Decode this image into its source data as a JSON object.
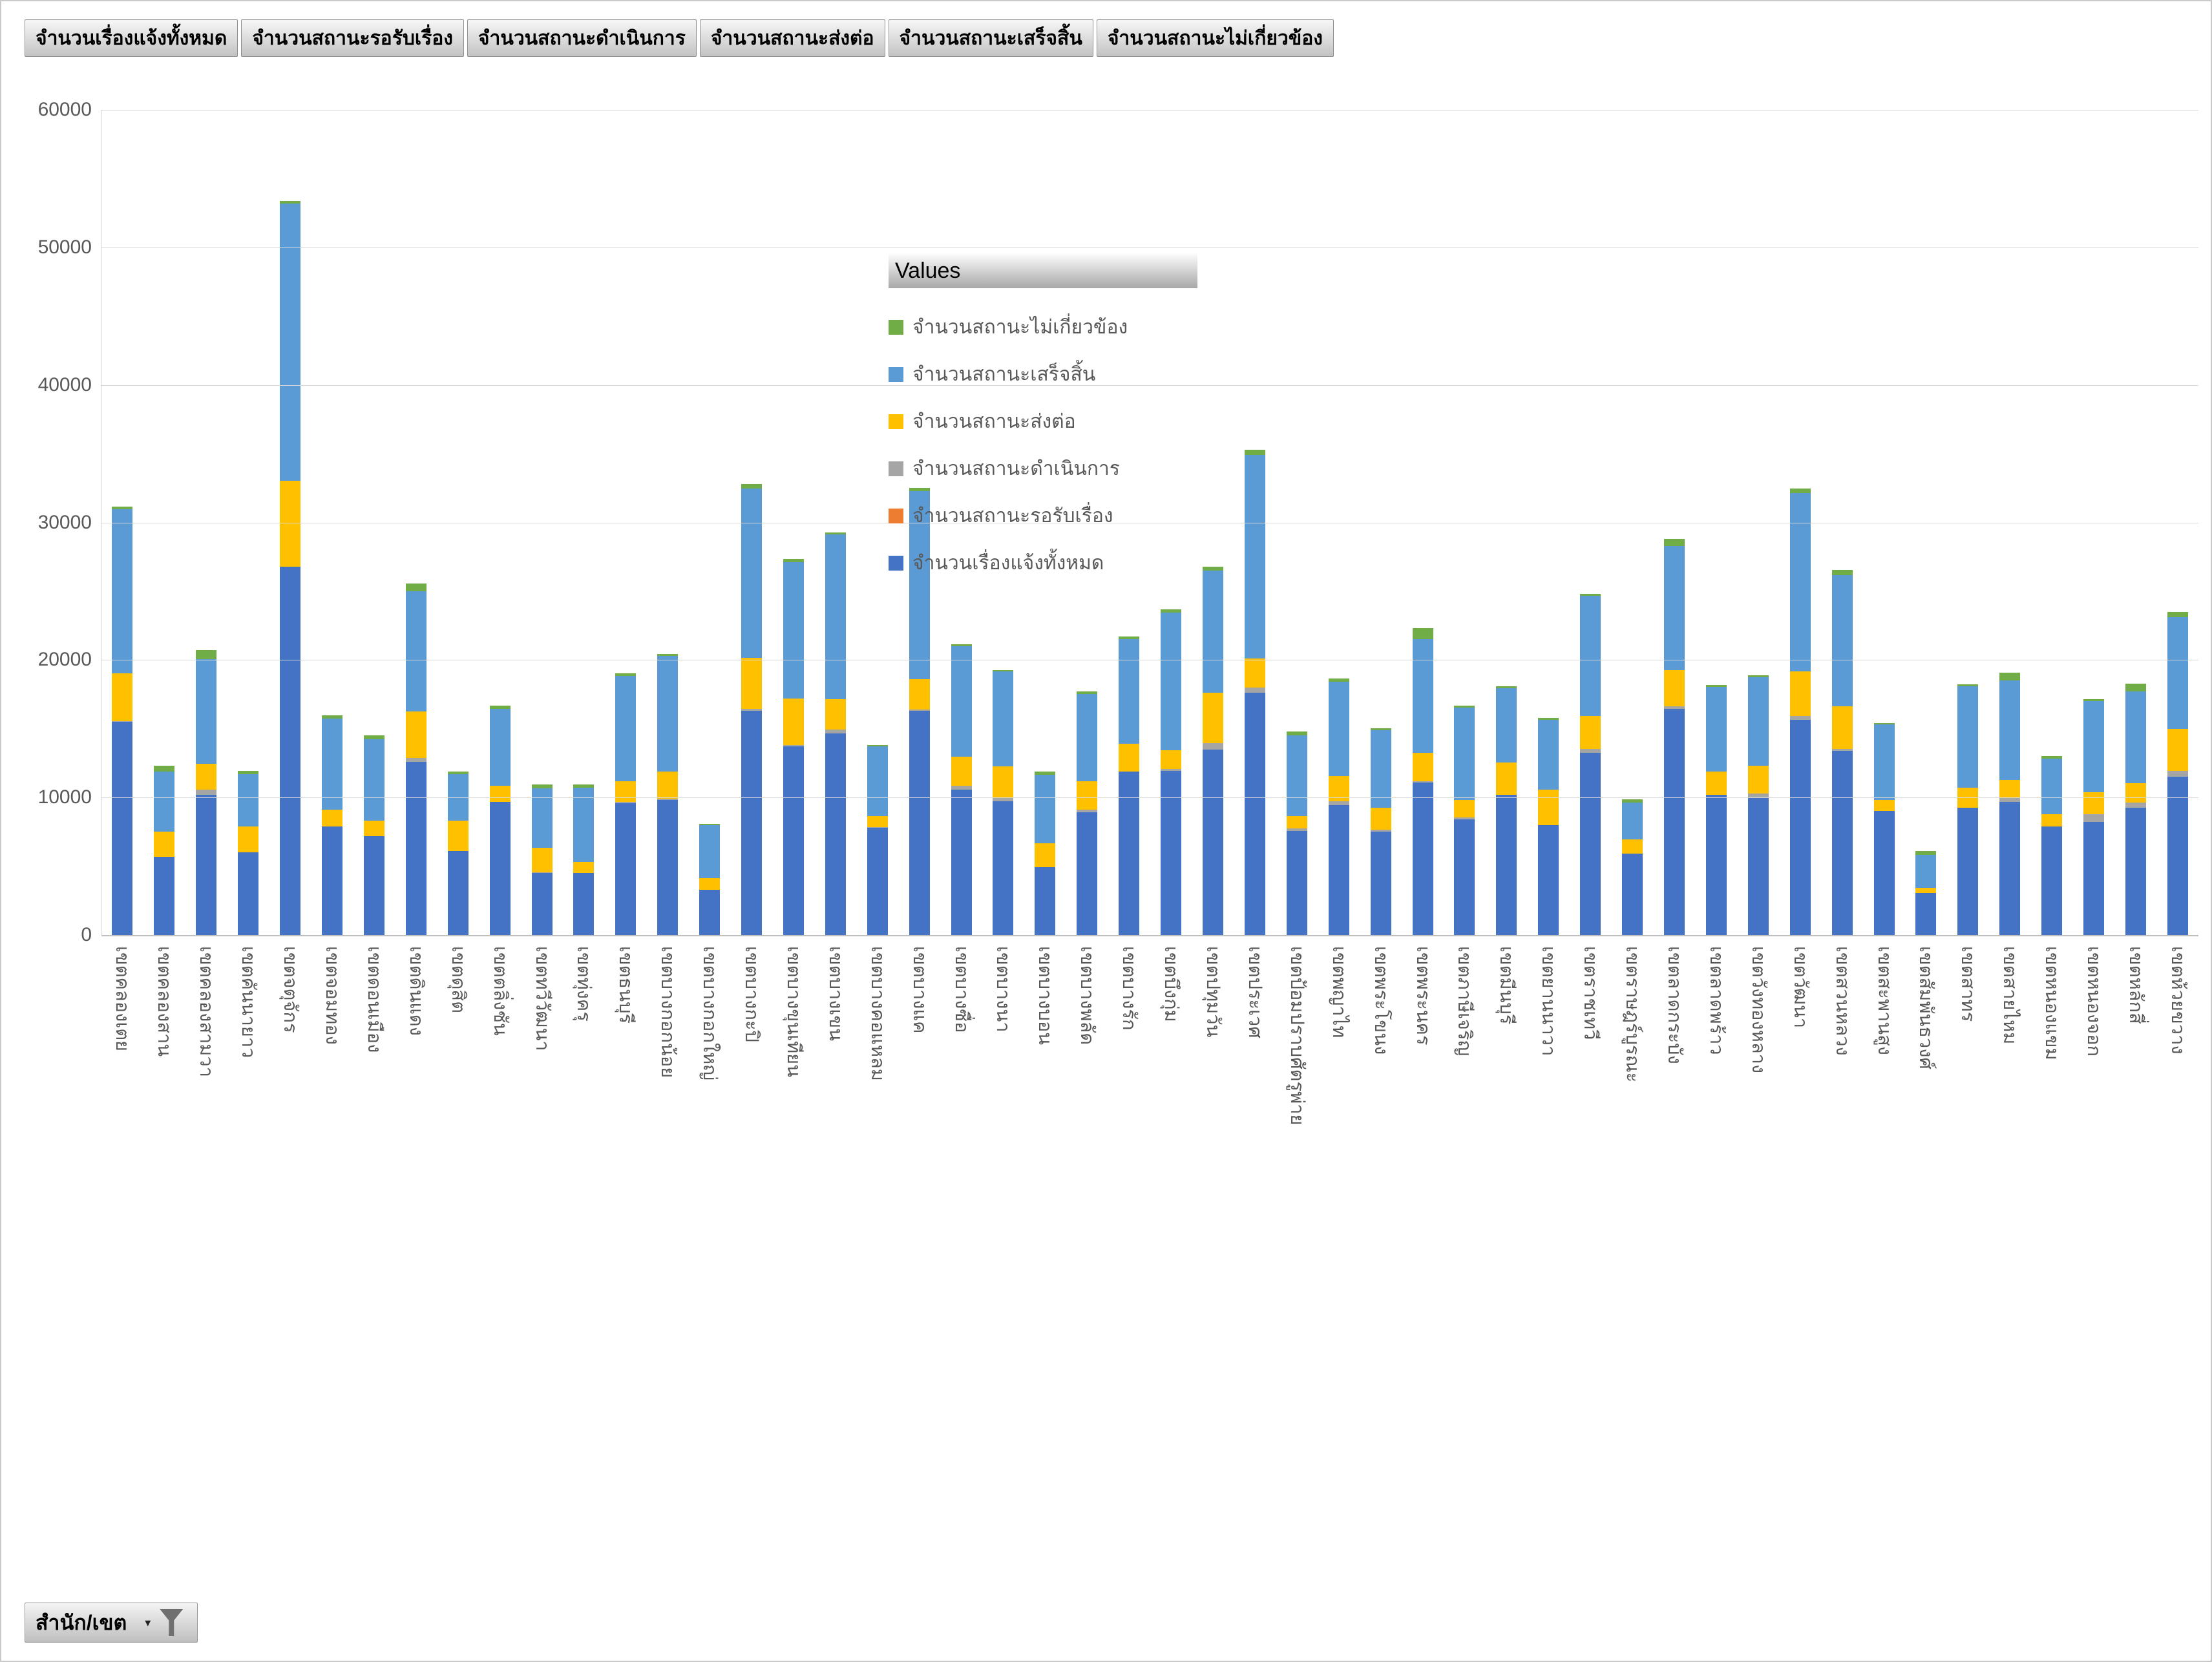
{
  "field_buttons": [
    "จำนวนเรื่องแจ้งทั้งหมด",
    "จำนวนสถานะรอรับเรื่อง",
    "จำนวนสถานะดำเนินการ",
    "จำนวนสถานะส่งต่อ",
    "จำนวนสถานะเสร็จสิ้น",
    "จำนวนสถานะไม่เกี่ยวข้อง"
  ],
  "legend": {
    "title": "Values",
    "items": [
      {
        "label": "จำนวนสถานะไม่เกี่ยวข้อง",
        "color": "#70AD47"
      },
      {
        "label": "จำนวนสถานะเสร็จสิ้น",
        "color": "#5B9BD5"
      },
      {
        "label": "จำนวนสถานะส่งต่อ",
        "color": "#FFC000"
      },
      {
        "label": "จำนวนสถานะดำเนินการ",
        "color": "#A5A5A5"
      },
      {
        "label": "จำนวนสถานะรอรับเรื่อง",
        "color": "#ED7D31"
      },
      {
        "label": "จำนวนเรื่องแจ้งทั้งหมด",
        "color": "#4472C4"
      }
    ]
  },
  "filter_button": {
    "label": "สำนัก/เขต",
    "caret": "▾",
    "icon": "funnel-icon"
  },
  "colors": {
    "gridline": "#D9D9D9",
    "axis_line": "#BFBFBF",
    "text_gray": "#595959"
  },
  "chart_data": {
    "type": "bar",
    "stacked": true,
    "title": "",
    "xlabel": "",
    "ylabel": "",
    "ylim": [
      0,
      60000
    ],
    "yticks": [
      0,
      10000,
      20000,
      30000,
      40000,
      50000,
      60000
    ],
    "grid": true,
    "legend_position": "overlay-upper-middle",
    "categories": [
      "เขตคลองเตย",
      "เขตคลองสาน",
      "เขตคลองสามวา",
      "เขตคันนายาว",
      "เขตจตุจักร",
      "เขตจอมทอง",
      "เขตดอนเมือง",
      "เขตดินแดง",
      "เขตดุสิต",
      "เขตตลิ่งชัน",
      "เขตทวีวัฒนา",
      "เขตทุ่งครุ",
      "เขตธนบุรี",
      "เขตบางกอกน้อย",
      "เขตบางกอกใหญ่",
      "เขตบางกะปิ",
      "เขตบางขุนเทียน",
      "เขตบางเขน",
      "เขตบางคอแหลม",
      "เขตบางแค",
      "เขตบางซื่อ",
      "เขตบางนา",
      "เขตบางบอน",
      "เขตบางพลัด",
      "เขตบางรัก",
      "เขตบึงกุ่ม",
      "เขตปทุมวัน",
      "เขตประเวศ",
      "เขตป้อมปราบศัตรูพ่าย",
      "เขตพญาไท",
      "เขตพระโขนง",
      "เขตพระนคร",
      "เขตภาษีเจริญ",
      "เขตมีนบุรี",
      "เขตยานนาวา",
      "เขตราชเทวี",
      "เขตราษฎร์บูรณะ",
      "เขตลาดกระบัง",
      "เขตลาดพร้าว",
      "เขตวังทองหลาง",
      "เขตวัฒนา",
      "เขตสวนหลวง",
      "เขตสะพานสูง",
      "เขตสัมพันธวงศ์",
      "เขตสาทร",
      "เขตสายไหม",
      "เขตหนองแขม",
      "เขตหนองจอก",
      "เขตหลักสี่",
      "เขตห้วยขวาง"
    ],
    "series": [
      {
        "name": "จำนวนเรื่องแจ้งทั้งหมด",
        "color": "#4472C4",
        "values": [
          15500,
          5700,
          10200,
          6000,
          26800,
          7900,
          7200,
          12600,
          6100,
          9700,
          4500,
          4500,
          9600,
          9800,
          3300,
          16300,
          13700,
          14650,
          7800,
          16300,
          10550,
          9750,
          4950,
          8950,
          11900,
          11950,
          13500,
          17600,
          7550,
          9450,
          7500,
          11100,
          8400,
          10200,
          8000,
          13250,
          5900,
          16450,
          10200,
          10000,
          15650,
          13400,
          9000,
          3050,
          9250,
          9700,
          7900,
          8200,
          9250,
          11500
        ]
      },
      {
        "name": "จำนวนสถานะรอรับเรื่อง",
        "color": "#ED7D31",
        "values": [
          0,
          0,
          0,
          0,
          0,
          0,
          0,
          0,
          0,
          0,
          0,
          0,
          0,
          0,
          0,
          0,
          0,
          0,
          0,
          0,
          0,
          0,
          0,
          0,
          0,
          0,
          0,
          0,
          0,
          0,
          0,
          0,
          0,
          0,
          0,
          0,
          0,
          0,
          0,
          0,
          0,
          0,
          0,
          0,
          0,
          0,
          0,
          0,
          0,
          0
        ]
      },
      {
        "name": "จำนวนสถานะดำเนินการ",
        "color": "#A5A5A5",
        "values": [
          50,
          0,
          350,
          0,
          0,
          0,
          0,
          280,
          0,
          0,
          50,
          0,
          80,
          100,
          0,
          150,
          100,
          300,
          50,
          100,
          300,
          200,
          0,
          150,
          0,
          130,
          450,
          400,
          180,
          300,
          150,
          100,
          150,
          0,
          0,
          300,
          0,
          200,
          0,
          300,
          300,
          150,
          0,
          0,
          0,
          300,
          0,
          600,
          400,
          450
        ]
      },
      {
        "name": "จำนวนสถานะส่งต่อ",
        "color": "#FFC000",
        "values": [
          3500,
          1800,
          1900,
          1900,
          6250,
          1200,
          1100,
          3400,
          2200,
          1150,
          1800,
          800,
          1500,
          2000,
          850,
          3700,
          3400,
          2200,
          800,
          2200,
          2100,
          2300,
          1700,
          2100,
          2000,
          1350,
          3650,
          2100,
          900,
          1800,
          1600,
          2050,
          1250,
          2350,
          2550,
          2400,
          1050,
          2600,
          1700,
          2000,
          3200,
          3100,
          800,
          400,
          1450,
          1300,
          900,
          1600,
          1400,
          3050
        ]
      },
      {
        "name": "จำนวนสถานะเสร็จสิ้น",
        "color": "#5B9BD5",
        "values": [
          11900,
          4400,
          7600,
          3800,
          20150,
          6650,
          5950,
          8700,
          3400,
          5600,
          4300,
          5400,
          7650,
          8400,
          3850,
          12300,
          9900,
          12000,
          5050,
          13700,
          8050,
          6900,
          5000,
          6350,
          7600,
          10000,
          8900,
          14800,
          5900,
          6850,
          5650,
          8250,
          6750,
          5400,
          5100,
          8700,
          2700,
          9050,
          6150,
          6450,
          13000,
          9500,
          5500,
          2400,
          7400,
          7200,
          4050,
          6600,
          6650,
          8100
        ]
      },
      {
        "name": "จำนวนสถานะไม่เกี่ยวข้อง",
        "color": "#70AD47",
        "values": [
          200,
          400,
          650,
          250,
          200,
          250,
          280,
          600,
          200,
          250,
          300,
          250,
          200,
          150,
          100,
          350,
          250,
          120,
          100,
          200,
          160,
          120,
          250,
          160,
          200,
          270,
          300,
          400,
          250,
          260,
          150,
          800,
          150,
          120,
          120,
          150,
          200,
          500,
          130,
          130,
          300,
          380,
          120,
          280,
          120,
          600,
          150,
          150,
          600,
          400
        ]
      }
    ]
  }
}
